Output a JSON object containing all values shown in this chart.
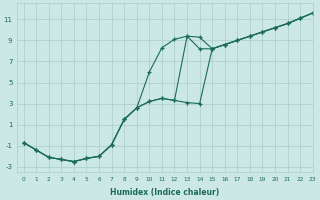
{
  "bg_color": "#cce8e4",
  "grid_color": "#aaccc8",
  "line_color": "#1a6b5a",
  "xlabel": "Humidex (Indice chaleur)",
  "xlim": [
    -0.5,
    23
  ],
  "ylim": [
    -3.5,
    12.5
  ],
  "yticks": [
    -3,
    -1,
    1,
    3,
    5,
    7,
    9,
    11
  ],
  "xticks": [
    0,
    1,
    2,
    3,
    4,
    5,
    6,
    7,
    8,
    9,
    10,
    11,
    12,
    13,
    14,
    15,
    16,
    17,
    18,
    19,
    20,
    21,
    22,
    23
  ],
  "line1_x": [
    0,
    1,
    2,
    3,
    4,
    5,
    6,
    7,
    8,
    9,
    10,
    11,
    12,
    13,
    14,
    15,
    16,
    17,
    18,
    19,
    20,
    21,
    22,
    23
  ],
  "line1_y": [
    -0.7,
    -1.4,
    -2.1,
    -2.3,
    -2.5,
    -2.2,
    -2.0,
    -0.9,
    1.5,
    2.6,
    3.2,
    3.5,
    3.3,
    3.1,
    3.0,
    8.2,
    8.6,
    9.0,
    9.4,
    9.8,
    10.2,
    10.6,
    11.1,
    11.6
  ],
  "line2_x": [
    0,
    1,
    2,
    3,
    4,
    5,
    6,
    7,
    8,
    9,
    10,
    11,
    12,
    13,
    14,
    15,
    16,
    17,
    18,
    19,
    20,
    21,
    22,
    23
  ],
  "line2_y": [
    -0.7,
    -1.4,
    -2.1,
    -2.3,
    -2.5,
    -2.2,
    -2.0,
    -0.9,
    1.5,
    2.6,
    6.0,
    8.3,
    9.1,
    9.4,
    9.3,
    8.2,
    8.6,
    9.0,
    9.4,
    9.8,
    10.2,
    10.6,
    11.1,
    11.6
  ],
  "line3_x": [
    0,
    1,
    2,
    3,
    4,
    5,
    6,
    7,
    8,
    9,
    10,
    11,
    12,
    13,
    14,
    15,
    16,
    17,
    18,
    19,
    20,
    21,
    22,
    23
  ],
  "line3_y": [
    -0.7,
    -1.4,
    -2.1,
    -2.3,
    -2.5,
    -2.2,
    -2.0,
    -0.9,
    1.5,
    2.6,
    3.2,
    3.5,
    3.3,
    9.4,
    8.2,
    8.2,
    8.6,
    9.0,
    9.4,
    9.8,
    10.2,
    10.6,
    11.1,
    11.6
  ]
}
